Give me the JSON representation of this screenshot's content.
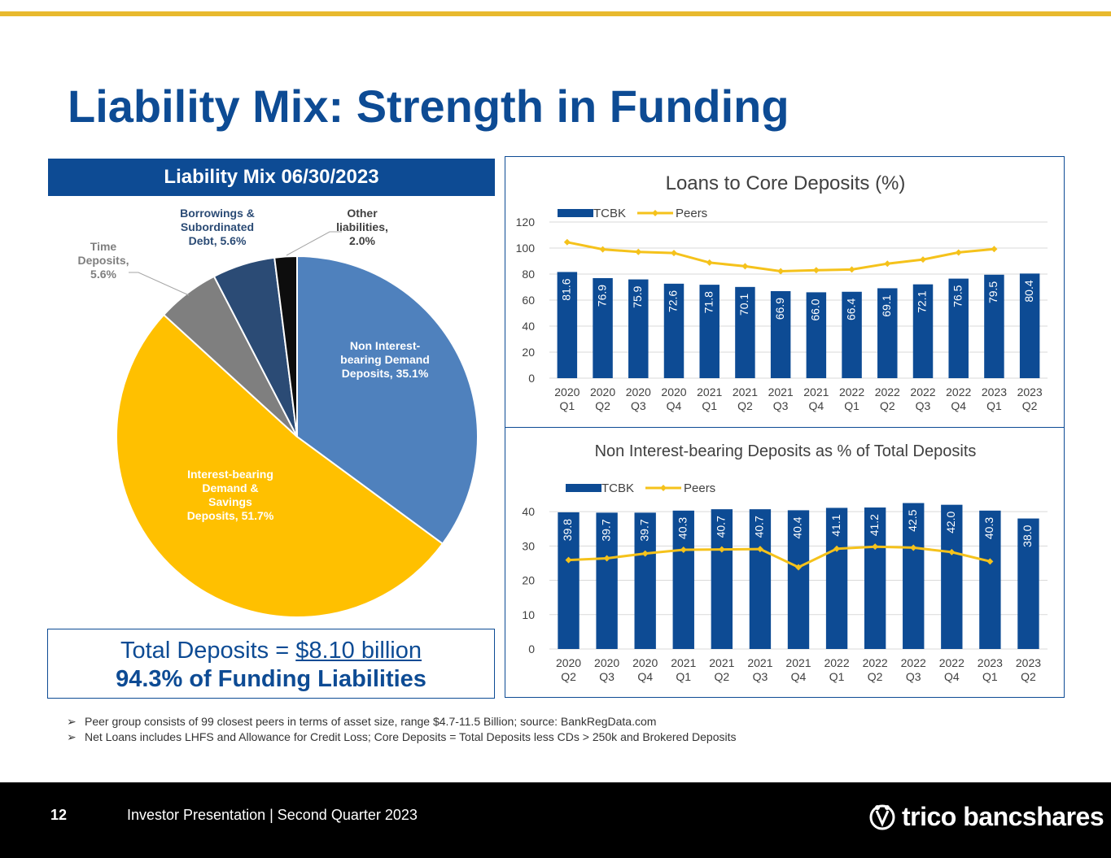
{
  "title": "Liability Mix: Strength in Funding",
  "pie_header": "Liability Mix 06/30/2023",
  "total_box": {
    "line1_prefix": "Total Deposits = ",
    "line1_amount": "$8.10 billion",
    "line2": "94.3% of Funding Liabilities"
  },
  "notes": [
    "Peer group consists of 99 closest peers in terms of asset size, range $4.7-11.5 Billion; source: BankRegData.com",
    "Net Loans includes LHFS and Allowance for Credit Loss; Core Deposits = Total Deposits less CDs > 250k and Brokered Deposits"
  ],
  "footer": {
    "page_number": "12",
    "text": "Investor Presentation | Second Quarter 2023",
    "logo_text": "trico bancshares"
  },
  "colors": {
    "brand_blue": "#0d4b94",
    "gold": "#e8b92e",
    "pie_light_blue": "#4f81bd",
    "pie_yellow": "#ffc000",
    "pie_gray": "#7f7f7f",
    "pie_dark_navy": "#2b4b75",
    "pie_black": "#0d0d0d",
    "bar": "#0d4b94",
    "peers_line": "#f5c21b"
  },
  "chart_data": [
    {
      "type": "pie",
      "title": "Liability Mix 06/30/2023",
      "slices": [
        {
          "label": [
            "Non Interest-",
            "bearing Demand",
            "Deposits, 35.1%"
          ],
          "value": 35.1,
          "color": "#4f81bd",
          "label_color": "#ffffff"
        },
        {
          "label": [
            "Interest-bearing",
            "Demand &",
            "Savings",
            "Deposits, 51.7%"
          ],
          "value": 51.7,
          "color": "#ffc000",
          "label_color": "#ffffff"
        },
        {
          "label": [
            "Time",
            "Deposits,",
            "5.6%"
          ],
          "value": 5.6,
          "color": "#7f7f7f",
          "label_color": "#7f7f7f"
        },
        {
          "label": [
            "Borrowings &",
            "Subordinated",
            "Debt, 5.6%"
          ],
          "value": 5.6,
          "color": "#2b4b75",
          "label_color": "#2b4b75"
        },
        {
          "label": [
            "Other",
            "liabilities,",
            "2.0%"
          ],
          "value": 2.0,
          "color": "#0d0d0d",
          "label_color": "#404040"
        }
      ]
    },
    {
      "type": "bar",
      "title": "Loans to Core Deposits (%)",
      "categories": [
        [
          "2020",
          "Q1"
        ],
        [
          "2020",
          "Q2"
        ],
        [
          "2020",
          "Q3"
        ],
        [
          "2020",
          "Q4"
        ],
        [
          "2021",
          "Q1"
        ],
        [
          "2021",
          "Q2"
        ],
        [
          "2021",
          "Q3"
        ],
        [
          "2021",
          "Q4"
        ],
        [
          "2022",
          "Q1"
        ],
        [
          "2022",
          "Q2"
        ],
        [
          "2022",
          "Q3"
        ],
        [
          "2022",
          "Q4"
        ],
        [
          "2023",
          "Q1"
        ],
        [
          "2023",
          "Q2"
        ]
      ],
      "ylim": [
        0,
        120
      ],
      "yticks": [
        0,
        20,
        40,
        60,
        80,
        100,
        120
      ],
      "grid": true,
      "legend": "top-left",
      "series": [
        {
          "name": "TCBK",
          "kind": "bar",
          "values": [
            81.6,
            76.9,
            75.9,
            72.6,
            71.8,
            70.1,
            66.9,
            66.0,
            66.4,
            69.1,
            72.1,
            76.5,
            79.5,
            80.4
          ],
          "labels": [
            "81.6",
            "76.9",
            "75.9",
            "72.6",
            "71.8",
            "70.1",
            "66.9",
            "66.0",
            "66.4",
            "69.1",
            "72.1",
            "76.5",
            "79.5",
            "80.4"
          ]
        },
        {
          "name": "Peers",
          "kind": "line",
          "values": [
            104.5,
            99.0,
            97.0,
            96.2,
            88.8,
            86.0,
            82.2,
            83.0,
            83.5,
            88.0,
            91.2,
            96.6,
            99.2,
            null
          ]
        }
      ]
    },
    {
      "type": "bar",
      "title": "Non Interest-bearing Deposits as % of Total Deposits",
      "categories": [
        [
          "2020",
          "Q2"
        ],
        [
          "2020",
          "Q3"
        ],
        [
          "2020",
          "Q4"
        ],
        [
          "2021",
          "Q1"
        ],
        [
          "2021",
          "Q2"
        ],
        [
          "2021",
          "Q3"
        ],
        [
          "2021",
          "Q4"
        ],
        [
          "2022",
          "Q1"
        ],
        [
          "2022",
          "Q2"
        ],
        [
          "2022",
          "Q3"
        ],
        [
          "2022",
          "Q4"
        ],
        [
          "2023",
          "Q1"
        ],
        [
          "2023",
          "Q2"
        ]
      ],
      "ylim": [
        0,
        45
      ],
      "yticks": [
        0,
        10,
        20,
        30,
        40
      ],
      "grid": true,
      "legend": "top-left",
      "series": [
        {
          "name": "TCBK",
          "kind": "bar",
          "values": [
            39.8,
            39.7,
            39.7,
            40.3,
            40.7,
            40.7,
            40.4,
            41.1,
            41.2,
            42.5,
            42.0,
            40.3,
            38.0
          ],
          "labels": [
            "39.8",
            "39.7",
            "39.7",
            "40.3",
            "40.7",
            "40.7",
            "40.4",
            "41.1",
            "41.2",
            "42.5",
            "42.0",
            "40.3",
            "38.0"
          ]
        },
        {
          "name": "Peers",
          "kind": "line",
          "values": [
            25.9,
            26.4,
            27.8,
            28.9,
            29.0,
            29.1,
            23.8,
            29.2,
            29.8,
            29.5,
            28.2,
            25.5,
            null
          ]
        }
      ]
    }
  ]
}
